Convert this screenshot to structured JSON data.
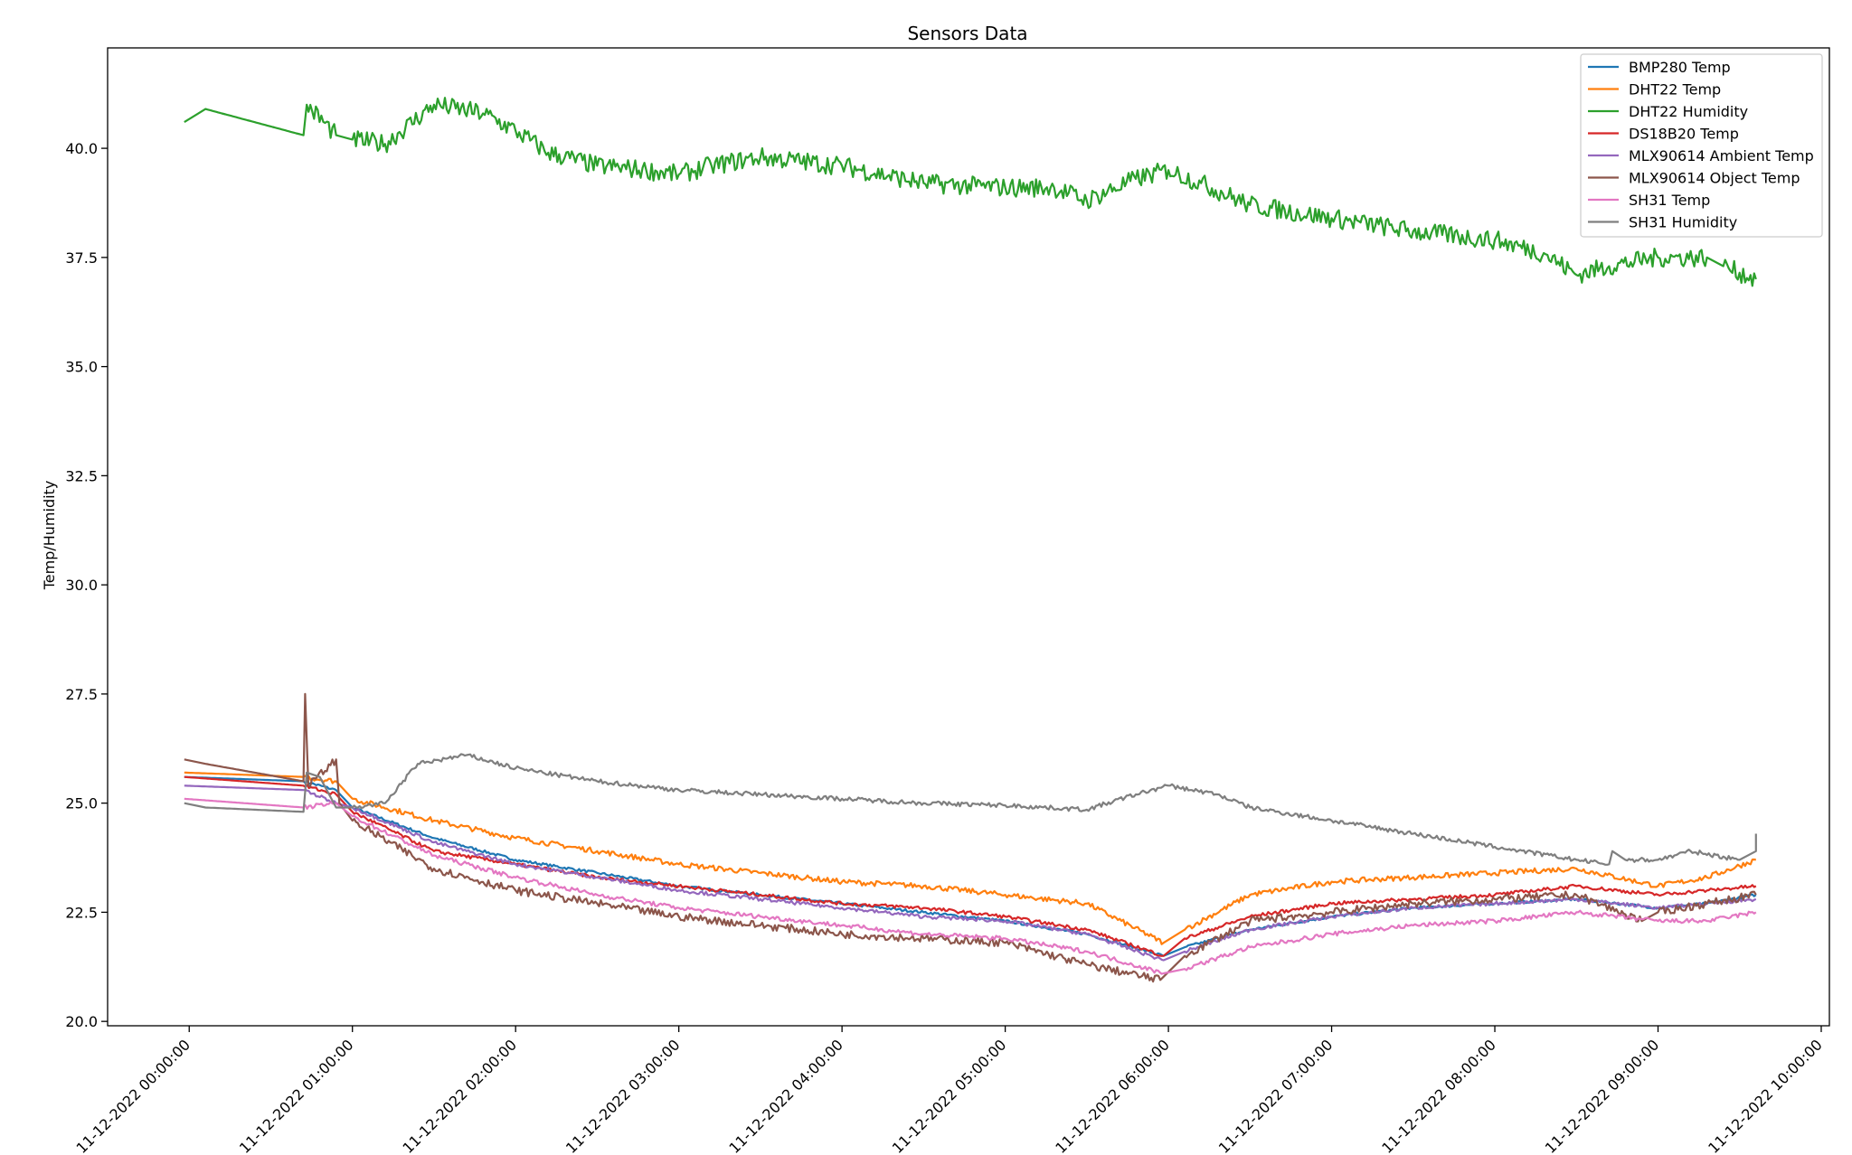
{
  "chart_data": {
    "type": "line",
    "title": "Sensors Data",
    "xlabel": "",
    "ylabel": "Temp/Humidity",
    "ylim": [
      19.9,
      42.3
    ],
    "xlim_hours": [
      -0.5,
      10.05
    ],
    "yticks": [
      20.0,
      22.5,
      25.0,
      27.5,
      30.0,
      32.5,
      35.0,
      37.5,
      40.0
    ],
    "xticks": [
      {
        "hour": 0,
        "label": "11-12-2022 00:00:00"
      },
      {
        "hour": 1,
        "label": "11-12-2022 01:00:00"
      },
      {
        "hour": 2,
        "label": "11-12-2022 02:00:00"
      },
      {
        "hour": 3,
        "label": "11-12-2022 03:00:00"
      },
      {
        "hour": 4,
        "label": "11-12-2022 04:00:00"
      },
      {
        "hour": 5,
        "label": "11-12-2022 05:00:00"
      },
      {
        "hour": 6,
        "label": "11-12-2022 06:00:00"
      },
      {
        "hour": 7,
        "label": "11-12-2022 07:00:00"
      },
      {
        "hour": 8,
        "label": "11-12-2022 08:00:00"
      },
      {
        "hour": 9,
        "label": "11-12-2022 09:00:00"
      },
      {
        "hour": 10,
        "label": "11-12-2022 10:00:00"
      }
    ],
    "legend_position": "top-right",
    "grid": false,
    "series": [
      {
        "name": "BMP280 Temp",
        "color": "#1f77b4",
        "x": [
          -0.03,
          0.7,
          0.9,
          1.0,
          1.5,
          2.0,
          2.5,
          3.0,
          3.5,
          4.0,
          4.5,
          5.0,
          5.5,
          5.97,
          6.1,
          6.5,
          7.0,
          7.5,
          8.0,
          8.5,
          9.0,
          9.3,
          9.6
        ],
        "y": [
          25.6,
          25.5,
          25.3,
          24.9,
          24.2,
          23.7,
          23.4,
          23.1,
          22.9,
          22.7,
          22.5,
          22.3,
          22.0,
          21.5,
          21.7,
          22.1,
          22.4,
          22.6,
          22.7,
          22.8,
          22.6,
          22.7,
          22.9
        ]
      },
      {
        "name": "DHT22 Temp",
        "color": "#ff7f0e",
        "x": [
          -0.03,
          0.7,
          0.9,
          1.0,
          1.5,
          2.0,
          2.5,
          3.0,
          3.5,
          4.0,
          4.5,
          5.0,
          5.5,
          5.97,
          6.1,
          6.5,
          7.0,
          7.5,
          8.0,
          8.5,
          9.0,
          9.3,
          9.6
        ],
        "y": [
          25.7,
          25.6,
          25.5,
          25.1,
          24.6,
          24.2,
          23.9,
          23.6,
          23.4,
          23.2,
          23.1,
          22.9,
          22.7,
          21.8,
          22.1,
          22.9,
          23.2,
          23.3,
          23.4,
          23.5,
          23.1,
          23.3,
          23.7
        ]
      },
      {
        "name": "DHT22 Humidity",
        "color": "#2ca02c",
        "x": [
          -0.03,
          0.1,
          0.7,
          0.72,
          0.9,
          1.0,
          1.2,
          1.5,
          1.8,
          2.0,
          2.2,
          2.5,
          2.8,
          3.0,
          3.2,
          3.5,
          4.0,
          4.5,
          5.0,
          5.3,
          5.5,
          5.8,
          6.0,
          6.2,
          6.5,
          7.0,
          7.5,
          8.0,
          8.3,
          8.5,
          8.7,
          9.0,
          9.3,
          9.4,
          9.6
        ],
        "y": [
          40.6,
          40.9,
          40.3,
          41.0,
          40.3,
          40.2,
          40.1,
          41.0,
          40.8,
          40.4,
          39.9,
          39.6,
          39.5,
          39.4,
          39.6,
          39.8,
          39.6,
          39.2,
          39.1,
          39.1,
          38.8,
          39.3,
          39.5,
          39.2,
          38.7,
          38.4,
          38.1,
          37.9,
          37.6,
          37.1,
          37.3,
          37.5,
          37.5,
          37.3,
          37.0
        ]
      },
      {
        "name": "DS18B20 Temp",
        "color": "#d62728",
        "x": [
          -0.03,
          0.7,
          0.9,
          1.0,
          1.5,
          2.0,
          2.5,
          3.0,
          3.5,
          4.0,
          4.5,
          5.0,
          5.5,
          5.97,
          6.1,
          6.5,
          7.0,
          7.5,
          8.0,
          8.5,
          9.0,
          9.3,
          9.6
        ],
        "y": [
          25.6,
          25.4,
          25.2,
          24.8,
          23.9,
          23.6,
          23.3,
          23.1,
          22.9,
          22.7,
          22.6,
          22.4,
          22.1,
          21.5,
          21.9,
          22.4,
          22.7,
          22.8,
          22.9,
          23.1,
          22.9,
          23.0,
          23.1
        ]
      },
      {
        "name": "MLX90614 Ambient Temp",
        "color": "#9467bd",
        "x": [
          -0.03,
          0.7,
          0.9,
          1.0,
          1.5,
          2.0,
          2.5,
          3.0,
          3.5,
          4.0,
          4.5,
          5.0,
          5.5,
          5.97,
          6.1,
          6.5,
          7.0,
          7.5,
          8.0,
          8.5,
          9.0,
          9.3,
          9.6
        ],
        "y": [
          25.4,
          25.3,
          25.0,
          24.9,
          24.1,
          23.6,
          23.3,
          23.0,
          22.8,
          22.6,
          22.4,
          22.3,
          22.0,
          21.4,
          21.6,
          22.1,
          22.4,
          22.6,
          22.7,
          22.8,
          22.6,
          22.7,
          22.8
        ]
      },
      {
        "name": "MLX90614 Object Temp",
        "color": "#8c564b",
        "x": [
          -0.03,
          0.1,
          0.7,
          0.71,
          0.73,
          0.9,
          0.92,
          1.0,
          1.5,
          2.0,
          2.5,
          3.0,
          3.5,
          4.0,
          4.5,
          5.0,
          5.5,
          5.95,
          6.1,
          6.5,
          7.0,
          7.5,
          8.0,
          8.5,
          8.9,
          9.0,
          9.3,
          9.6
        ],
        "y": [
          26.0,
          25.9,
          25.5,
          27.5,
          25.4,
          26.0,
          25.0,
          24.6,
          23.5,
          23.0,
          22.7,
          22.4,
          22.2,
          22.0,
          21.9,
          21.8,
          21.3,
          20.95,
          21.5,
          22.3,
          22.5,
          22.7,
          22.8,
          22.9,
          22.3,
          22.5,
          22.7,
          22.9
        ]
      },
      {
        "name": "SH31 Temp",
        "color": "#e377c2",
        "x": [
          -0.03,
          0.7,
          0.9,
          1.0,
          1.5,
          2.0,
          2.5,
          3.0,
          3.5,
          4.0,
          4.5,
          5.0,
          5.5,
          5.97,
          6.1,
          6.5,
          7.0,
          7.5,
          8.0,
          8.5,
          9.0,
          9.3,
          9.6
        ],
        "y": [
          25.1,
          24.9,
          25.0,
          24.7,
          23.8,
          23.3,
          22.9,
          22.6,
          22.4,
          22.2,
          22.0,
          21.9,
          21.6,
          21.1,
          21.2,
          21.7,
          22.0,
          22.2,
          22.3,
          22.5,
          22.3,
          22.3,
          22.5
        ]
      },
      {
        "name": "SH31 Humidity",
        "color": "#7f7f7f",
        "x": [
          -0.03,
          0.1,
          0.7,
          0.72,
          0.8,
          0.9,
          1.0,
          1.2,
          1.4,
          1.7,
          2.0,
          2.5,
          3.0,
          3.5,
          4.0,
          4.5,
          5.0,
          5.5,
          5.8,
          6.0,
          6.3,
          6.5,
          7.0,
          7.5,
          8.0,
          8.5,
          8.7,
          8.72,
          8.8,
          9.0,
          9.2,
          9.5,
          9.6,
          9.6
        ],
        "y": [
          25.0,
          24.9,
          24.8,
          25.7,
          25.6,
          24.9,
          24.9,
          25.0,
          25.9,
          26.1,
          25.8,
          25.5,
          25.3,
          25.2,
          25.1,
          25.0,
          24.95,
          24.85,
          25.2,
          25.4,
          25.2,
          24.9,
          24.6,
          24.3,
          24.0,
          23.7,
          23.6,
          23.9,
          23.7,
          23.7,
          23.9,
          23.7,
          23.9,
          24.3
        ]
      }
    ]
  }
}
